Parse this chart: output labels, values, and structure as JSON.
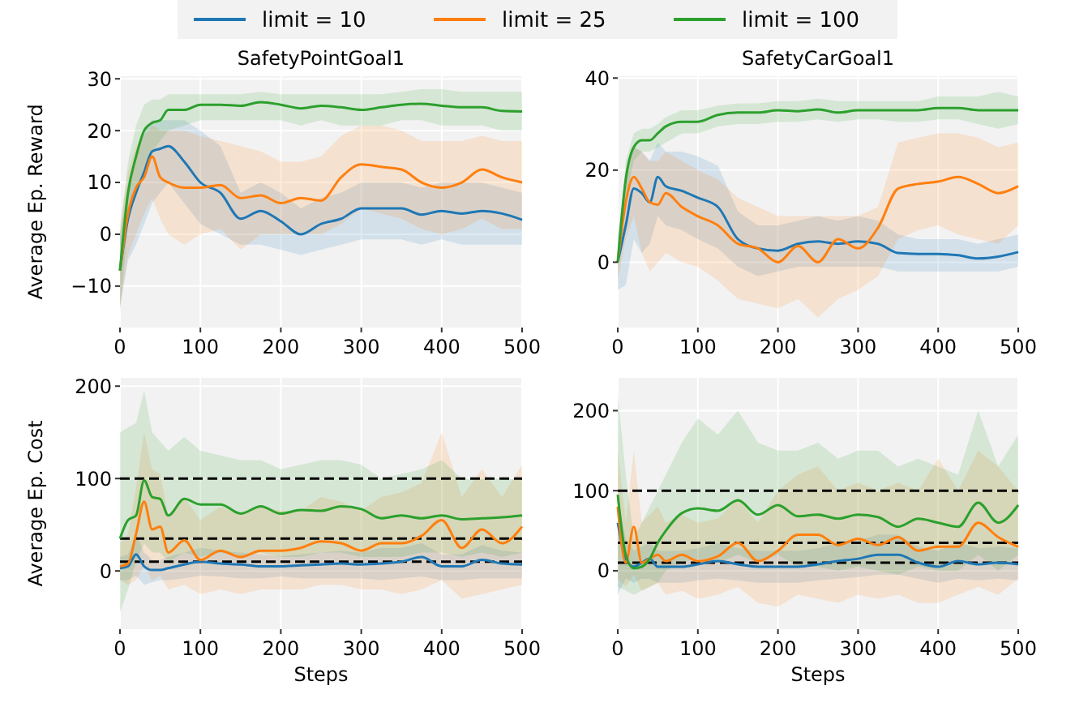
{
  "chart_data": [
    {
      "type": "line",
      "title": "SafetyPointGoal1",
      "ylabel": "Average Ep. Reward",
      "legend": "top",
      "grid": true,
      "line_style": "solid",
      "x": [
        0,
        10,
        20,
        30,
        40,
        50,
        60,
        80,
        100,
        125,
        150,
        175,
        200,
        225,
        250,
        275,
        300,
        325,
        350,
        375,
        400,
        425,
        450,
        475,
        500
      ],
      "xlim": [
        0,
        500
      ],
      "xticks": [
        0,
        100,
        200,
        300,
        400,
        500
      ],
      "ylim": [
        -18,
        30.5
      ],
      "yticks": [
        -10,
        0,
        10,
        20,
        30
      ],
      "series": [
        {
          "name": "limit = 10",
          "color": "#1f77b4",
          "values": [
            -7,
            3,
            8,
            12,
            16,
            16.5,
            17,
            14,
            10,
            8,
            3,
            4.5,
            2.5,
            0,
            2,
            3,
            5,
            5,
            5,
            3.8,
            4.5,
            4,
            4.5,
            4,
            2.8
          ],
          "lower": [
            -14,
            -5,
            -2,
            2,
            6,
            8,
            10,
            6,
            2,
            0,
            -2,
            -2,
            -3,
            -4,
            -3,
            -2,
            -1,
            -1,
            -1,
            -2,
            -1,
            -2,
            -2,
            -2,
            -2
          ],
          "upper": [
            0,
            10,
            15,
            20,
            22,
            22,
            22,
            22,
            20,
            17,
            8,
            10,
            8,
            5,
            7,
            8,
            10,
            10,
            10,
            9,
            10,
            10,
            10,
            9,
            8
          ]
        },
        {
          "name": "limit = 25",
          "color": "#ff7f0e",
          "values": [
            -7,
            4,
            9,
            11,
            15,
            11,
            10,
            9,
            9,
            9.5,
            7,
            7.5,
            6,
            7,
            6.5,
            11,
            13.5,
            13,
            12.5,
            10,
            9,
            10,
            12.5,
            11,
            10
          ],
          "lower": [
            -14,
            -4,
            0,
            4,
            7,
            3,
            0,
            -2,
            0,
            1,
            -3,
            0,
            0,
            0,
            0,
            2,
            5,
            4,
            3,
            1,
            0,
            1,
            3,
            1,
            1
          ],
          "upper": [
            2,
            12,
            17,
            19,
            21,
            20,
            20,
            20,
            19,
            18,
            17,
            16,
            14,
            14,
            15,
            19,
            21,
            21,
            20,
            18,
            18,
            18,
            19,
            18,
            18
          ]
        },
        {
          "name": "limit = 100",
          "color": "#2ca02c",
          "values": [
            -7,
            8,
            15,
            20,
            21.5,
            22,
            24,
            24,
            25,
            25,
            24.8,
            25.5,
            25,
            24.3,
            24.8,
            24.5,
            24,
            24.5,
            25,
            25.2,
            24.8,
            24.5,
            24.5,
            23.8,
            23.7
          ],
          "lower": [
            -15,
            2,
            8,
            13,
            16,
            18,
            20,
            21,
            22,
            22,
            22,
            22,
            22,
            21,
            22,
            21,
            21,
            21,
            22,
            22,
            21,
            21,
            21,
            20,
            20
          ],
          "upper": [
            0,
            14,
            21,
            25,
            26,
            26,
            27,
            27,
            27,
            27,
            27,
            27.5,
            27,
            27,
            27,
            27,
            27,
            27,
            27.5,
            28,
            28,
            27.5,
            27.5,
            27.5,
            27.5
          ]
        }
      ]
    },
    {
      "type": "line",
      "title": "SafetyCarGoal1",
      "grid": true,
      "line_style": "solid",
      "x": [
        0,
        10,
        20,
        30,
        40,
        50,
        60,
        80,
        100,
        125,
        150,
        175,
        200,
        225,
        250,
        275,
        300,
        325,
        350,
        375,
        400,
        425,
        450,
        475,
        500
      ],
      "xlim": [
        0,
        500
      ],
      "xticks": [
        0,
        100,
        200,
        300,
        400,
        500
      ],
      "ylim": [
        -14.2,
        40.4
      ],
      "yticks": [
        0,
        20,
        40
      ],
      "series": [
        {
          "color": "#1f77b4",
          "values": [
            0,
            8,
            16,
            15,
            13,
            18.5,
            16.5,
            15.5,
            14,
            12,
            5,
            3,
            2.5,
            4,
            4.5,
            4,
            4.5,
            4,
            2,
            1.8,
            1.8,
            1.5,
            0.8,
            1.2,
            2.2
          ],
          "lower": [
            -6,
            -5,
            5,
            2,
            4,
            10,
            8,
            7,
            5,
            3,
            -1,
            -3,
            -2,
            -1,
            -1,
            -1,
            -1,
            -1,
            -2,
            -2,
            -2,
            -2,
            -2,
            -2,
            -1
          ],
          "upper": [
            6,
            20,
            25,
            24,
            22,
            26,
            24,
            24,
            23,
            21,
            11,
            8,
            8,
            9,
            10,
            9,
            10,
            9,
            6,
            5,
            5,
            5,
            4,
            5,
            6
          ]
        },
        {
          "color": "#ff7f0e",
          "values": [
            0,
            13,
            18.5,
            16,
            13,
            12.5,
            15,
            12,
            10,
            8,
            4,
            3,
            0,
            3.5,
            0,
            5,
            3,
            7.5,
            16,
            17,
            17.5,
            18.5,
            17,
            15,
            16.5
          ],
          "lower": [
            -4,
            5,
            10,
            2,
            -2,
            0,
            2,
            0,
            -1,
            -4,
            -8,
            -9,
            -10,
            -8,
            -12,
            -8,
            -6,
            -3,
            5,
            7,
            8,
            6,
            5,
            4,
            8
          ],
          "upper": [
            4,
            20,
            25,
            24,
            22,
            22,
            24,
            22,
            20,
            18,
            14,
            12,
            10,
            10,
            10,
            10,
            10,
            12,
            26,
            27,
            28,
            28,
            27,
            25,
            26
          ]
        },
        {
          "color": "#2ca02c",
          "values": [
            0,
            18,
            25,
            26.5,
            26.5,
            28,
            29.5,
            30.5,
            30.5,
            32,
            32.5,
            32.5,
            33,
            32.8,
            33.2,
            32.5,
            33,
            33,
            33,
            33,
            33.5,
            33.5,
            33,
            33,
            33
          ],
          "lower": [
            -2,
            14,
            22,
            24,
            24,
            25,
            26,
            28,
            28,
            29.5,
            30,
            30,
            30.5,
            30.5,
            31,
            30.5,
            31,
            31,
            30.5,
            30.5,
            31,
            31,
            30,
            29,
            30
          ],
          "upper": [
            2,
            22,
            28,
            29,
            29,
            30,
            31.5,
            33,
            33,
            34,
            34.5,
            34.5,
            35,
            35,
            35.5,
            35,
            35,
            35,
            35,
            35,
            36,
            36,
            36,
            37,
            36
          ]
        }
      ]
    },
    {
      "type": "line",
      "xlabel": "Steps",
      "ylabel": "Average Ep. Cost",
      "grid": true,
      "line_style": "solid",
      "x": [
        0,
        10,
        20,
        30,
        40,
        50,
        60,
        80,
        100,
        125,
        150,
        175,
        200,
        225,
        250,
        275,
        300,
        325,
        350,
        375,
        400,
        425,
        450,
        475,
        500
      ],
      "xlim": [
        0,
        500
      ],
      "xticks": [
        0,
        100,
        200,
        300,
        400,
        500
      ],
      "ylim": [
        -63,
        209
      ],
      "yticks": [
        0,
        100,
        200
      ],
      "ref_lines": [
        {
          "axis": "y",
          "value": 10,
          "color": "#000000",
          "line_style": "dashed"
        },
        {
          "axis": "y",
          "value": 35,
          "color": "#000000",
          "line_style": "dashed"
        },
        {
          "axis": "y",
          "value": 100,
          "color": "#000000",
          "line_style": "dashed"
        }
      ],
      "series": [
        {
          "color": "#1f77b4",
          "values": [
            3,
            5,
            18,
            5,
            1,
            1,
            3,
            7,
            10,
            8,
            7,
            5,
            5,
            6,
            7,
            8,
            7,
            8,
            10,
            15,
            5,
            5,
            12,
            8,
            7
          ],
          "lower": [
            -10,
            -10,
            -5,
            -15,
            -12,
            -10,
            -10,
            -8,
            -5,
            -6,
            -8,
            -8,
            -6,
            -8,
            -8,
            -8,
            -8,
            -10,
            -8,
            -6,
            -10,
            -10,
            -8,
            -8,
            -8
          ],
          "upper": [
            15,
            18,
            40,
            20,
            12,
            12,
            15,
            20,
            25,
            22,
            20,
            18,
            16,
            18,
            20,
            22,
            20,
            25,
            25,
            30,
            18,
            18,
            28,
            22,
            20
          ]
        },
        {
          "color": "#ff7f0e",
          "values": [
            5,
            8,
            40,
            75,
            45,
            48,
            20,
            33,
            12,
            22,
            15,
            22,
            22,
            25,
            32,
            30,
            22,
            30,
            30,
            38,
            55,
            25,
            45,
            30,
            48
          ],
          "lower": [
            -10,
            -15,
            -10,
            5,
            -10,
            -5,
            -20,
            -15,
            -25,
            -20,
            -25,
            -20,
            -20,
            -20,
            -15,
            -15,
            -20,
            -20,
            -25,
            -20,
            -10,
            -30,
            -25,
            -20,
            -15
          ],
          "upper": [
            30,
            40,
            90,
            150,
            110,
            105,
            60,
            80,
            55,
            70,
            60,
            70,
            65,
            65,
            80,
            75,
            65,
            80,
            85,
            95,
            150,
            80,
            110,
            80,
            115
          ]
        },
        {
          "color": "#2ca02c",
          "values": [
            35,
            55,
            60,
            98,
            80,
            78,
            60,
            78,
            72,
            72,
            62,
            70,
            62,
            66,
            65,
            70,
            67,
            57,
            60,
            57,
            60,
            56,
            57,
            58,
            60
          ],
          "lower": [
            -45,
            -20,
            10,
            30,
            20,
            20,
            10,
            20,
            15,
            20,
            15,
            20,
            15,
            15,
            20,
            20,
            15,
            15,
            15,
            20,
            20,
            15,
            20,
            15,
            20
          ],
          "upper": [
            150,
            155,
            160,
            195,
            150,
            140,
            130,
            145,
            130,
            125,
            120,
            120,
            110,
            115,
            120,
            120,
            115,
            100,
            105,
            110,
            120,
            100,
            100,
            100,
            100
          ]
        }
      ]
    },
    {
      "type": "line",
      "xlabel": "Steps",
      "grid": true,
      "line_style": "solid",
      "x": [
        0,
        10,
        20,
        30,
        40,
        50,
        60,
        80,
        100,
        125,
        150,
        175,
        200,
        225,
        250,
        275,
        300,
        325,
        350,
        375,
        400,
        425,
        450,
        475,
        500
      ],
      "xlim": [
        0,
        500
      ],
      "xticks": [
        0,
        100,
        200,
        300,
        400,
        500
      ],
      "ylim": [
        -73,
        241
      ],
      "yticks": [
        0,
        100,
        200
      ],
      "ref_lines": [
        {
          "axis": "y",
          "value": 10,
          "color": "#000000",
          "line_style": "dashed"
        },
        {
          "axis": "y",
          "value": 35,
          "color": "#000000",
          "line_style": "dashed"
        },
        {
          "axis": "y",
          "value": 100,
          "color": "#000000",
          "line_style": "dashed"
        }
      ],
      "series": [
        {
          "color": "#1f77b4",
          "values": [
            60,
            15,
            5,
            10,
            15,
            5,
            5,
            5,
            8,
            12,
            8,
            5,
            5,
            5,
            8,
            12,
            15,
            20,
            20,
            10,
            5,
            12,
            8,
            10,
            8
          ],
          "lower": [
            -30,
            -10,
            -15,
            -10,
            -10,
            -15,
            -15,
            -15,
            -12,
            -10,
            -12,
            -15,
            -15,
            -15,
            -12,
            -10,
            -8,
            -5,
            -5,
            -10,
            -15,
            -10,
            -12,
            -10,
            -12
          ],
          "upper": [
            90,
            40,
            25,
            30,
            35,
            25,
            25,
            25,
            28,
            35,
            28,
            25,
            25,
            25,
            28,
            35,
            38,
            45,
            45,
            30,
            25,
            35,
            28,
            30,
            28
          ]
        },
        {
          "color": "#ff7f0e",
          "values": [
            80,
            10,
            55,
            10,
            15,
            20,
            12,
            20,
            12,
            18,
            35,
            12,
            25,
            45,
            45,
            32,
            40,
            32,
            42,
            25,
            30,
            30,
            60,
            42,
            30
          ],
          "lower": [
            -10,
            -20,
            -5,
            -25,
            -20,
            -15,
            -30,
            -25,
            -35,
            -30,
            -20,
            -40,
            -45,
            -30,
            -35,
            -40,
            -30,
            -35,
            -30,
            -40,
            -40,
            -30,
            -20,
            -30,
            -10
          ],
          "upper": [
            150,
            60,
            150,
            60,
            70,
            80,
            60,
            70,
            60,
            65,
            90,
            60,
            100,
            120,
            130,
            100,
            110,
            100,
            110,
            100,
            140,
            100,
            150,
            130,
            100
          ]
        },
        {
          "color": "#2ca02c",
          "values": [
            95,
            20,
            3,
            5,
            15,
            35,
            50,
            72,
            78,
            75,
            88,
            70,
            82,
            68,
            70,
            65,
            70,
            67,
            55,
            65,
            60,
            55,
            85,
            60,
            82
          ],
          "lower": [
            -20,
            -25,
            -30,
            -25,
            -20,
            -15,
            0,
            10,
            15,
            10,
            20,
            10,
            20,
            5,
            5,
            0,
            5,
            0,
            -5,
            5,
            0,
            0,
            20,
            0,
            20
          ],
          "upper": [
            220,
            120,
            40,
            60,
            80,
            100,
            120,
            160,
            190,
            170,
            200,
            160,
            150,
            150,
            160,
            140,
            150,
            150,
            130,
            140,
            130,
            120,
            200,
            130,
            170
          ]
        }
      ]
    }
  ]
}
